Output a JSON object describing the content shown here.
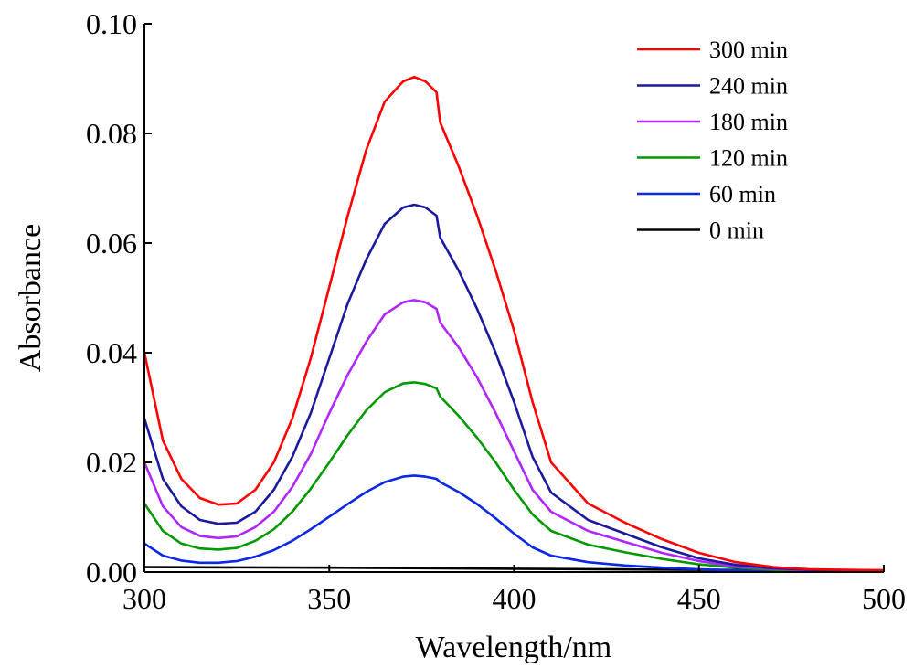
{
  "chart_data": {
    "type": "line",
    "xlabel": "Wavelength/nm",
    "ylabel": "Absorbance",
    "xlim": [
      300,
      500
    ],
    "ylim": [
      0,
      0.1
    ],
    "xticks": [
      "300",
      "350",
      "400",
      "450",
      "500"
    ],
    "yticks": [
      "0.00",
      "0.02",
      "0.04",
      "0.06",
      "0.08",
      "0.10"
    ],
    "grid": false,
    "legend_position": "top-right",
    "series": [
      {
        "name": "300 min",
        "color": "#ff0000",
        "x": [
          300,
          305,
          310,
          315,
          320,
          325,
          330,
          335,
          340,
          345,
          350,
          355,
          360,
          365,
          370,
          373,
          376,
          379,
          380,
          385,
          390,
          395,
          400,
          405,
          410,
          420,
          430,
          440,
          450,
          460,
          470,
          480,
          490,
          500
        ],
        "y": [
          0.04,
          0.024,
          0.017,
          0.0135,
          0.0123,
          0.0125,
          0.015,
          0.02,
          0.028,
          0.039,
          0.052,
          0.065,
          0.077,
          0.0858,
          0.0895,
          0.0903,
          0.0895,
          0.0875,
          0.082,
          0.074,
          0.065,
          0.055,
          0.044,
          0.031,
          0.02,
          0.0125,
          0.009,
          0.006,
          0.0035,
          0.0018,
          0.0009,
          0.0005,
          0.0004,
          0.0003
        ]
      },
      {
        "name": "240 min",
        "color": "#1a1a9c",
        "x": [
          300,
          305,
          310,
          315,
          320,
          325,
          330,
          335,
          340,
          345,
          350,
          355,
          360,
          365,
          370,
          373,
          376,
          379,
          380,
          385,
          390,
          395,
          400,
          405,
          410,
          420,
          430,
          440,
          450,
          460,
          470,
          480,
          490,
          500
        ],
        "y": [
          0.028,
          0.017,
          0.012,
          0.0095,
          0.0088,
          0.009,
          0.011,
          0.015,
          0.021,
          0.029,
          0.039,
          0.049,
          0.057,
          0.0635,
          0.0665,
          0.067,
          0.0665,
          0.065,
          0.061,
          0.055,
          0.048,
          0.04,
          0.031,
          0.021,
          0.0145,
          0.0095,
          0.007,
          0.0045,
          0.0025,
          0.0013,
          0.0007,
          0.0004,
          0.0003,
          0.0003
        ]
      },
      {
        "name": "180 min",
        "color": "#b026ff",
        "x": [
          300,
          305,
          310,
          315,
          320,
          325,
          330,
          335,
          340,
          345,
          350,
          355,
          360,
          365,
          370,
          373,
          376,
          379,
          380,
          385,
          390,
          395,
          400,
          405,
          410,
          420,
          430,
          440,
          450,
          460,
          470,
          480,
          490,
          500
        ],
        "y": [
          0.02,
          0.012,
          0.0082,
          0.0066,
          0.0062,
          0.0065,
          0.0082,
          0.011,
          0.0155,
          0.0215,
          0.029,
          0.036,
          0.042,
          0.047,
          0.0492,
          0.0496,
          0.0492,
          0.048,
          0.0455,
          0.041,
          0.0355,
          0.029,
          0.022,
          0.015,
          0.011,
          0.0075,
          0.0055,
          0.0035,
          0.002,
          0.001,
          0.0006,
          0.0003,
          0.0003,
          0.0002
        ]
      },
      {
        "name": "120 min",
        "color": "#009900",
        "x": [
          300,
          305,
          310,
          315,
          320,
          325,
          330,
          335,
          340,
          345,
          350,
          355,
          360,
          365,
          370,
          373,
          376,
          379,
          380,
          385,
          390,
          395,
          400,
          405,
          410,
          420,
          430,
          440,
          450,
          460,
          470,
          480,
          490,
          500
        ],
        "y": [
          0.0125,
          0.0075,
          0.0052,
          0.0043,
          0.0041,
          0.0044,
          0.0057,
          0.0078,
          0.011,
          0.0152,
          0.02,
          0.025,
          0.0295,
          0.0328,
          0.0344,
          0.0346,
          0.0343,
          0.0335,
          0.032,
          0.0285,
          0.0245,
          0.02,
          0.015,
          0.0105,
          0.0075,
          0.005,
          0.0036,
          0.0024,
          0.0014,
          0.0008,
          0.0004,
          0.0002,
          0.0002,
          0.0002
        ]
      },
      {
        "name": "60 min",
        "color": "#0a28e6",
        "x": [
          300,
          305,
          310,
          315,
          320,
          325,
          330,
          335,
          340,
          345,
          350,
          355,
          360,
          365,
          370,
          373,
          376,
          379,
          380,
          385,
          390,
          395,
          400,
          405,
          410,
          420,
          430,
          440,
          450,
          460,
          470,
          480,
          490,
          500
        ],
        "y": [
          0.0052,
          0.003,
          0.0021,
          0.0017,
          0.0017,
          0.002,
          0.0028,
          0.004,
          0.0057,
          0.0078,
          0.0101,
          0.0124,
          0.0146,
          0.0164,
          0.0174,
          0.0176,
          0.0174,
          0.017,
          0.0164,
          0.0146,
          0.0124,
          0.0098,
          0.007,
          0.0045,
          0.003,
          0.0018,
          0.0012,
          0.0008,
          0.0005,
          0.0003,
          0.0002,
          0.0001,
          0.0001,
          0.0001
        ]
      },
      {
        "name": "0 min",
        "color": "#000000",
        "x": [
          300,
          350,
          400,
          450,
          500
        ],
        "y": [
          0.0009,
          0.0008,
          0.0006,
          0.0004,
          0.0003
        ]
      }
    ]
  }
}
